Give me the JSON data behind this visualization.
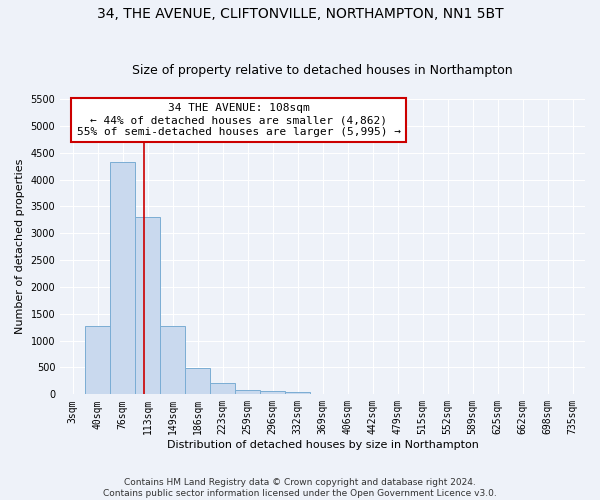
{
  "title": "34, THE AVENUE, CLIFTONVILLE, NORTHAMPTON, NN1 5BT",
  "subtitle": "Size of property relative to detached houses in Northampton",
  "xlabel": "Distribution of detached houses by size in Northampton",
  "ylabel": "Number of detached properties",
  "footer_line1": "Contains HM Land Registry data © Crown copyright and database right 2024.",
  "footer_line2": "Contains public sector information licensed under the Open Government Licence v3.0.",
  "bin_labels": [
    "3sqm",
    "40sqm",
    "76sqm",
    "113sqm",
    "149sqm",
    "186sqm",
    "223sqm",
    "259sqm",
    "296sqm",
    "332sqm",
    "369sqm",
    "406sqm",
    "442sqm",
    "479sqm",
    "515sqm",
    "552sqm",
    "589sqm",
    "625sqm",
    "662sqm",
    "698sqm",
    "735sqm"
  ],
  "bar_values": [
    0,
    1270,
    4330,
    3300,
    1280,
    490,
    210,
    80,
    60,
    50,
    0,
    0,
    0,
    0,
    0,
    0,
    0,
    0,
    0,
    0,
    0
  ],
  "bar_color": "#c9d9ee",
  "bar_edge_color": "#7aadd4",
  "vline_x": 2.85,
  "vline_color": "#cc0000",
  "annotation_text": "34 THE AVENUE: 108sqm\n← 44% of detached houses are smaller (4,862)\n55% of semi-detached houses are larger (5,995) →",
  "annotation_box_color": "#ffffff",
  "annotation_box_edge_color": "#cc0000",
  "ylim": [
    0,
    5500
  ],
  "yticks": [
    0,
    500,
    1000,
    1500,
    2000,
    2500,
    3000,
    3500,
    4000,
    4500,
    5000,
    5500
  ],
  "background_color": "#eef2f9",
  "grid_color": "#ffffff",
  "title_fontsize": 10,
  "subtitle_fontsize": 9,
  "axis_fontsize": 8,
  "tick_fontsize": 7,
  "annotation_fontsize": 8,
  "footer_fontsize": 6.5
}
